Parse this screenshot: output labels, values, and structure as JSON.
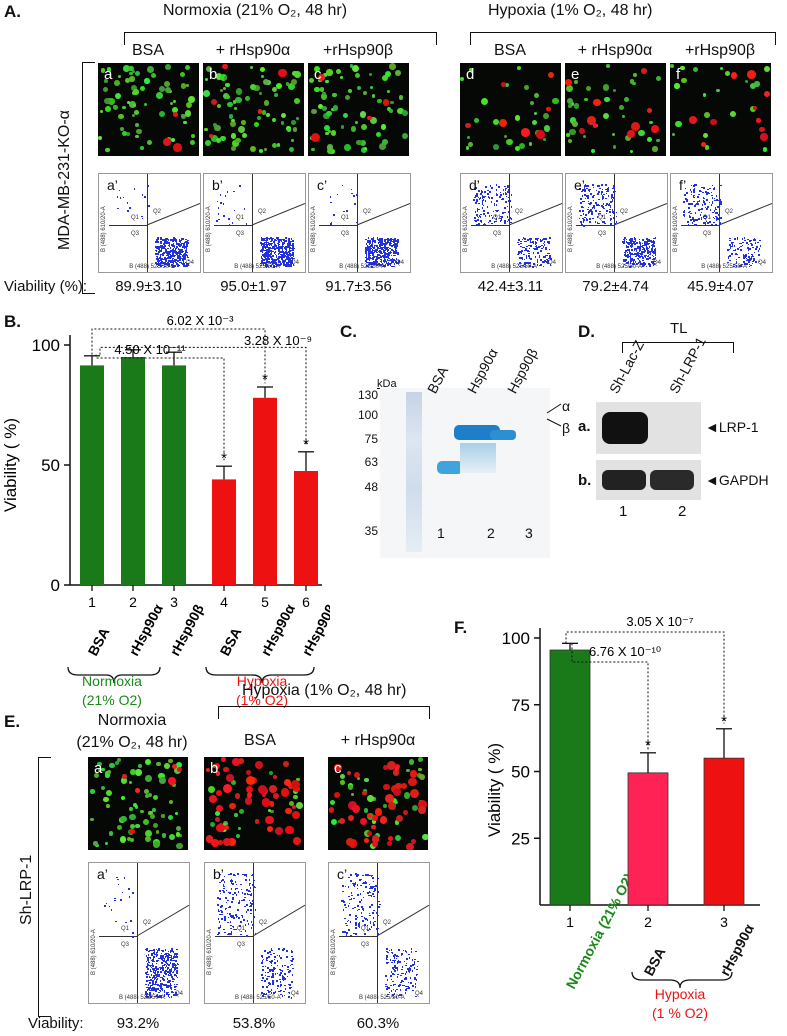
{
  "panelA": {
    "label": "A.",
    "normoxia_header": "Normoxia (21% O₂, 48 hr)",
    "hypoxia_header": "Hypoxia (1% O₂, 48 hr)",
    "row_label": "MDA-MB-231-KO-α",
    "conditions": [
      "BSA",
      "+ rHsp90α",
      "+rHsp90β",
      "BSA",
      "+ rHsp90α",
      "+rHsp90β"
    ],
    "micro_labels": [
      "a",
      "b",
      "c",
      "d",
      "e",
      "f"
    ],
    "flow_labels": [
      "a’",
      "b’",
      "c’",
      "d’",
      "e’",
      "f’"
    ],
    "viability_label": "Viability (%):",
    "viability_values": [
      "89.9±3.10",
      "95.0±1.97",
      "91.7±3.56",
      "42.4±3.11",
      "79.2±4.74",
      "45.9±4.07"
    ],
    "flow_axis_x": "B (488) 525/50-A",
    "flow_axis_y": "B (488) 610/20-A",
    "quadrants": [
      "Q1",
      "Q2",
      "Q3",
      "Q4"
    ]
  },
  "panelB": {
    "label": "B.",
    "ylabel": "Viability ( %)",
    "yticks": [
      "0",
      "50",
      "100"
    ],
    "pvalues": [
      "6.02 X 10⁻³",
      "4.50 X 10⁻¹¹",
      "3.28 X 10⁻⁹"
    ],
    "bar_numbers": [
      "1",
      "2",
      "3",
      "4",
      "5",
      "6"
    ],
    "bar_names": [
      "BSA",
      "rHsp90α",
      "rHsp90β",
      "BSA",
      "rHsp90α",
      "rHsp90β"
    ],
    "normoxia_group": [
      "Normoxia",
      "(21% O2)"
    ],
    "hypoxia_group": [
      "Hypoxia",
      "(1% O2)"
    ],
    "star": "*"
  },
  "panelC": {
    "label": "C.",
    "unit": "kDa",
    "markers": [
      "130",
      "100",
      "75",
      "63",
      "48",
      "35"
    ],
    "lanes": [
      "BSA",
      "Hsp90α",
      "Hsp90β"
    ],
    "lane_numbers": [
      "1",
      "2",
      "3"
    ],
    "alpha": "α",
    "beta": "β"
  },
  "panelD": {
    "label": "D.",
    "tl": "TL",
    "lanes": [
      "Sh-Lac-Z",
      "Sh-LRP-1"
    ],
    "rows": [
      "a.",
      "b."
    ],
    "targets": [
      "LRP-1",
      "GAPDH"
    ],
    "lane_numbers": [
      "1",
      "2"
    ]
  },
  "panelE": {
    "label": "E.",
    "hypoxia_header": "Hypoxia (1% O₂, 48 hr)",
    "normoxia_header": [
      "Normoxia",
      "(21% O₂, 48 hr)"
    ],
    "conditions": [
      "BSA",
      "+ rHsp90α"
    ],
    "row_label": "Sh-LRP-1",
    "micro_labels": [
      "a",
      "b",
      "c"
    ],
    "flow_labels": [
      "a’",
      "b’",
      "c’"
    ],
    "viability_label": "Viability:",
    "viability_values": [
      "93.2%",
      "53.8%",
      "60.3%"
    ]
  },
  "panelF": {
    "label": "F.",
    "ylabel": "Viability ( %)",
    "yticks": [
      "25",
      "50",
      "75",
      "100"
    ],
    "pvalues": [
      "3.05 X 10⁻⁷",
      "6.76 X 10⁻¹⁰"
    ],
    "bar_numbers": [
      "1",
      "2",
      "3"
    ],
    "bar_names": [
      "Normoxia (21% O2)",
      "BSA",
      "rHsp90α"
    ],
    "hypoxia_group": [
      "Hypoxia",
      "(1 % O2)"
    ],
    "star": "*"
  },
  "chart_data": [
    {
      "type": "bar",
      "panel": "B",
      "categories": [
        "BSA",
        "rHsp90α",
        "rHsp90β",
        "BSA",
        "rHsp90α",
        "rHsp90β"
      ],
      "values": [
        91.5,
        95,
        91.5,
        44,
        78,
        47.5
      ],
      "errors": [
        4,
        3,
        5.5,
        5.5,
        4.5,
        8
      ],
      "colors": [
        "#1a7a1a",
        "#1a7a1a",
        "#1a7a1a",
        "#ee1111",
        "#ee1111",
        "#ee1111"
      ],
      "ylim": [
        0,
        100
      ],
      "ylabel": "Viability ( %)"
    },
    {
      "type": "bar",
      "panel": "F",
      "categories": [
        "Normoxia (21% O2)",
        "BSA",
        "rHsp90α"
      ],
      "values": [
        95.5,
        49.5,
        55
      ],
      "errors": [
        2.5,
        7.5,
        11
      ],
      "colors": [
        "#1a7a1a",
        "#ff2255",
        "#ee1111"
      ],
      "ylim": [
        0,
        100
      ],
      "ylabel": "Viability ( %)"
    }
  ],
  "colors": {
    "normoxia": "#1a8a1a",
    "hypoxia": "#ee1111",
    "flow_dots": "#2233dd"
  }
}
